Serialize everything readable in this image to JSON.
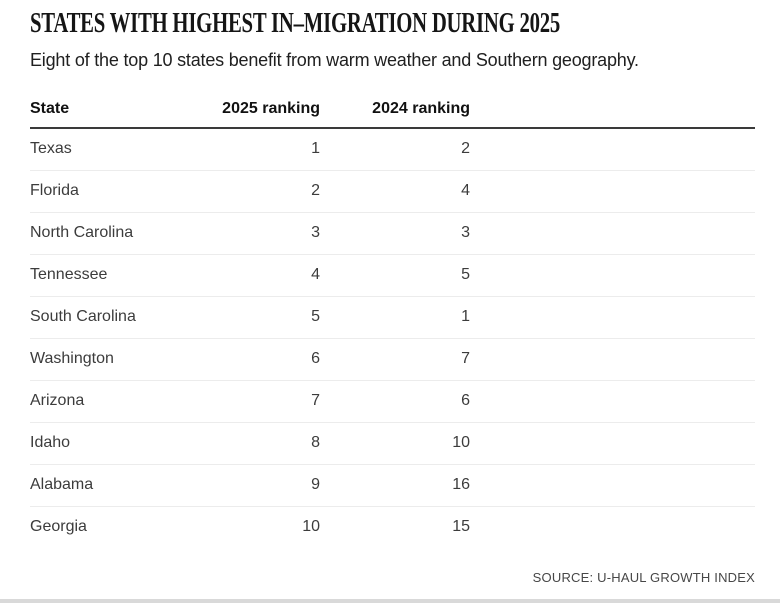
{
  "figure": {
    "title": "STATES WITH HIGHEST IN–MIGRATION DURING 2025",
    "subtitle": "Eight of the top 10 states benefit from warm weather and Southern geography.",
    "source": "SOURCE: U-HAUL GROWTH INDEX"
  },
  "chart_data": {
    "type": "table",
    "title": "STATES WITH HIGHEST IN–MIGRATION DURING 2025",
    "subtitle": "Eight of the top 10 states benefit from warm weather and Southern geography.",
    "columns": [
      "State",
      "2025 ranking",
      "2024 ranking"
    ],
    "rows": [
      {
        "state": "Texas",
        "rank_2025": 1,
        "rank_2024": 2
      },
      {
        "state": "Florida",
        "rank_2025": 2,
        "rank_2024": 4
      },
      {
        "state": "North Carolina",
        "rank_2025": 3,
        "rank_2024": 3
      },
      {
        "state": "Tennessee",
        "rank_2025": 4,
        "rank_2024": 5
      },
      {
        "state": "South Carolina",
        "rank_2025": 5,
        "rank_2024": 1
      },
      {
        "state": "Washington",
        "rank_2025": 6,
        "rank_2024": 7
      },
      {
        "state": "Arizona",
        "rank_2025": 7,
        "rank_2024": 6
      },
      {
        "state": "Idaho",
        "rank_2025": 8,
        "rank_2024": 10
      },
      {
        "state": "Alabama",
        "rank_2025": 9,
        "rank_2024": 16
      },
      {
        "state": "Georgia",
        "rank_2025": 10,
        "rank_2024": 15
      }
    ],
    "source": "SOURCE: U-HAUL GROWTH INDEX",
    "layout": {
      "header_rule_color": "#3a3a3a",
      "row_separator_color": "#ececec",
      "text_color": "#3c3c3c",
      "title_color": "#151515",
      "source_color": "#474747",
      "bottom_strip_color": "#d9d9d9",
      "grid": "horizontal-only",
      "value_alignment": "right"
    }
  }
}
